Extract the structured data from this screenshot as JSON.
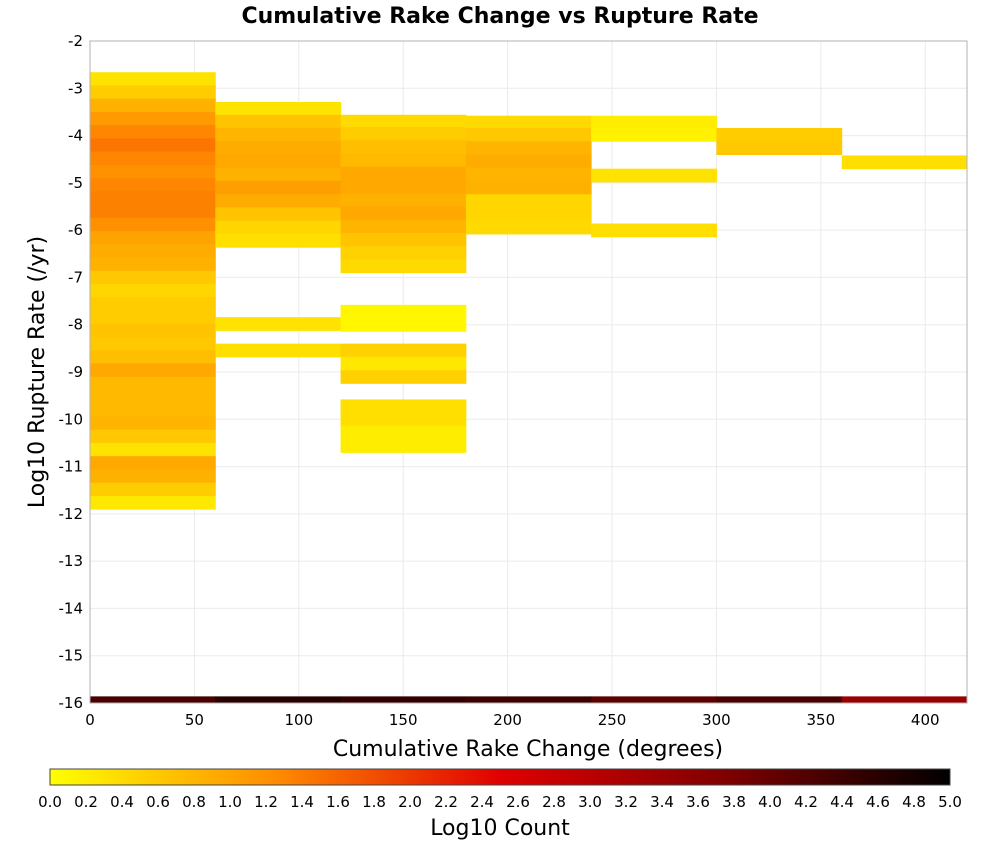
{
  "chart_data": {
    "type": "heatmap",
    "title": "Cumulative Rake Change vs Rupture Rate",
    "xlabel": "Cumulative Rake Change (degrees)",
    "ylabel": "Log10 Rupture Rate (/yr)",
    "xlim": [
      0,
      420
    ],
    "ylim": [
      -16,
      -2
    ],
    "x_ticks": [
      0,
      50,
      100,
      150,
      200,
      250,
      300,
      350,
      400
    ],
    "y_ticks": [
      -2,
      -3,
      -4,
      -5,
      -6,
      -7,
      -8,
      -9,
      -10,
      -11,
      -12,
      -13,
      -14,
      -15,
      -16
    ],
    "grid": true,
    "colorbar": {
      "label": "Log10 Count",
      "range": [
        0,
        5
      ],
      "ticks": [
        "0.0",
        "0.2",
        "0.4",
        "0.6",
        "0.8",
        "1.0",
        "1.2",
        "1.4",
        "1.6",
        "1.8",
        "2.0",
        "2.2",
        "2.4",
        "2.6",
        "2.8",
        "3.0",
        "3.2",
        "3.4",
        "3.6",
        "3.8",
        "4.0",
        "4.2",
        "4.4",
        "4.6",
        "4.8",
        "5.0"
      ],
      "colors": [
        "#ffff00",
        "#ff8c00",
        "#e00000",
        "#800000",
        "#000000"
      ]
    },
    "x_bin_width": 60,
    "y_bin_height": 0.28,
    "columns": [
      {
        "x": [
          0,
          60
        ],
        "cells": [
          [
            -2.8,
            0.3
          ],
          [
            -3.08,
            0.55
          ],
          [
            -3.36,
            0.85
          ],
          [
            -3.64,
            1.1
          ],
          [
            -3.92,
            1.3
          ],
          [
            -4.2,
            1.45
          ],
          [
            -4.48,
            1.3
          ],
          [
            -4.76,
            1.2
          ],
          [
            -5.04,
            1.3
          ],
          [
            -5.32,
            1.35
          ],
          [
            -5.6,
            1.35
          ],
          [
            -5.88,
            1.2
          ],
          [
            -6.16,
            1.0
          ],
          [
            -6.44,
            0.9
          ],
          [
            -6.72,
            0.85
          ],
          [
            -7.0,
            0.6
          ],
          [
            -7.28,
            0.45
          ],
          [
            -7.56,
            0.55
          ],
          [
            -7.84,
            0.55
          ],
          [
            -8.12,
            0.65
          ],
          [
            -8.4,
            0.6
          ],
          [
            -8.68,
            0.7
          ],
          [
            -8.96,
            0.95
          ],
          [
            -9.24,
            0.75
          ],
          [
            -9.52,
            0.75
          ],
          [
            -9.8,
            0.75
          ],
          [
            -10.08,
            0.8
          ],
          [
            -10.36,
            0.6
          ],
          [
            -10.64,
            0.3
          ],
          [
            -10.92,
            0.95
          ],
          [
            -11.2,
            0.85
          ],
          [
            -11.48,
            0.55
          ],
          [
            -11.76,
            0.25
          ]
        ]
      },
      {
        "x": [
          60,
          120
        ],
        "cells": [
          [
            -3.43,
            0.3
          ],
          [
            -3.7,
            0.65
          ],
          [
            -3.98,
            0.8
          ],
          [
            -4.26,
            0.9
          ],
          [
            -4.54,
            0.95
          ],
          [
            -4.82,
            0.85
          ],
          [
            -5.1,
            1.05
          ],
          [
            -5.38,
            0.9
          ],
          [
            -5.66,
            0.65
          ],
          [
            -5.94,
            0.45
          ],
          [
            -6.22,
            0.35
          ],
          [
            -7.98,
            0.3
          ],
          [
            -8.54,
            0.35
          ]
        ]
      },
      {
        "x": [
          120,
          180
        ],
        "cells": [
          [
            -3.7,
            0.4
          ],
          [
            -3.96,
            0.55
          ],
          [
            -4.24,
            0.7
          ],
          [
            -4.52,
            0.75
          ],
          [
            -4.8,
            0.95
          ],
          [
            -5.08,
            0.95
          ],
          [
            -5.36,
            0.85
          ],
          [
            -5.64,
            0.95
          ],
          [
            -5.92,
            0.8
          ],
          [
            -6.2,
            0.65
          ],
          [
            -6.48,
            0.5
          ],
          [
            -6.76,
            0.4
          ],
          [
            -7.72,
            0.1
          ],
          [
            -8.0,
            0.1
          ],
          [
            -8.54,
            0.5
          ],
          [
            -8.82,
            0.25
          ],
          [
            -9.1,
            0.5
          ],
          [
            -9.72,
            0.35
          ],
          [
            -10.0,
            0.35
          ],
          [
            -10.28,
            0.2
          ],
          [
            -10.56,
            0.2
          ]
        ]
      },
      {
        "x": [
          180,
          240
        ],
        "cells": [
          [
            -3.72,
            0.4
          ],
          [
            -3.98,
            0.6
          ],
          [
            -4.26,
            0.8
          ],
          [
            -4.54,
            0.9
          ],
          [
            -4.82,
            0.8
          ],
          [
            -5.1,
            0.85
          ],
          [
            -5.38,
            0.45
          ],
          [
            -5.66,
            0.45
          ],
          [
            -5.94,
            0.4
          ]
        ]
      },
      {
        "x": [
          240,
          300
        ],
        "cells": [
          [
            -3.72,
            0.2
          ],
          [
            -3.98,
            0.15
          ],
          [
            -4.84,
            0.3
          ],
          [
            -6.0,
            0.35
          ]
        ]
      },
      {
        "x": [
          300,
          360
        ],
        "cells": [
          [
            -3.98,
            0.55
          ],
          [
            -4.26,
            0.6
          ]
        ]
      },
      {
        "x": [
          360,
          420
        ],
        "cells": [
          [
            -4.56,
            0.35
          ]
        ]
      }
    ],
    "bottom_row": {
      "y": -15.93,
      "values": [
        4.3,
        4.6,
        4.5,
        4.4,
        4.1,
        4.3,
        3.4
      ]
    }
  }
}
